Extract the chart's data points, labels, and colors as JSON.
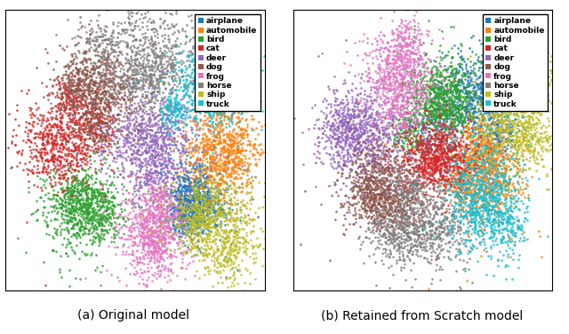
{
  "classes": [
    "airplane",
    "automobile",
    "bird",
    "cat",
    "deer",
    "dog",
    "frog",
    "horse",
    "ship",
    "truck"
  ],
  "colors": {
    "airplane": "#1f77b4",
    "automobile": "#ff7f0e",
    "bird": "#2ca02c",
    "cat": "#d62728",
    "deer": "#9467bd",
    "dog": "#8c564b",
    "frog": "#e377c2",
    "horse": "#7f7f7f",
    "ship": "#bcbd22",
    "truck": "#17becf"
  },
  "subtitle_a": "(a) Original model",
  "subtitle_b": "(b) Retained from Scratch model",
  "marker_size": 3.5,
  "legend_fontsize": 6.5,
  "subtitle_fontsize": 10,
  "centers_a": [
    [
      5.0,
      -3.5
    ],
    [
      7.5,
      -0.5
    ],
    [
      -4.5,
      -4.0
    ],
    [
      -6.5,
      0.5
    ],
    [
      1.0,
      0.5
    ],
    [
      -3.0,
      4.5
    ],
    [
      1.5,
      -6.0
    ],
    [
      1.5,
      6.5
    ],
    [
      6.5,
      -5.0
    ],
    [
      6.5,
      4.5
    ]
  ],
  "spreads_a": [
    [
      1.4,
      1.4
    ],
    [
      1.8,
      1.6
    ],
    [
      1.6,
      1.6
    ],
    [
      1.6,
      1.4
    ],
    [
      2.0,
      1.8
    ],
    [
      1.8,
      1.6
    ],
    [
      1.4,
      1.8
    ],
    [
      2.2,
      1.8
    ],
    [
      1.8,
      1.6
    ],
    [
      1.4,
      1.4
    ]
  ],
  "centers_b": [
    [
      4.5,
      3.5
    ],
    [
      5.5,
      -2.0
    ],
    [
      1.5,
      4.0
    ],
    [
      1.0,
      -0.5
    ],
    [
      -5.0,
      1.0
    ],
    [
      -4.0,
      -2.5
    ],
    [
      -2.0,
      5.5
    ],
    [
      0.5,
      -5.5
    ],
    [
      7.5,
      2.0
    ],
    [
      5.5,
      -3.5
    ]
  ],
  "spreads_b": [
    [
      1.6,
      1.6
    ],
    [
      1.4,
      1.6
    ],
    [
      1.6,
      1.4
    ],
    [
      1.8,
      1.5
    ],
    [
      1.8,
      1.8
    ],
    [
      1.4,
      1.4
    ],
    [
      1.4,
      1.6
    ],
    [
      1.8,
      1.4
    ],
    [
      1.8,
      1.8
    ],
    [
      1.4,
      2.0
    ]
  ],
  "n_points": 600,
  "xlim": [
    -11,
    11
  ],
  "ylim": [
    -10,
    10
  ]
}
